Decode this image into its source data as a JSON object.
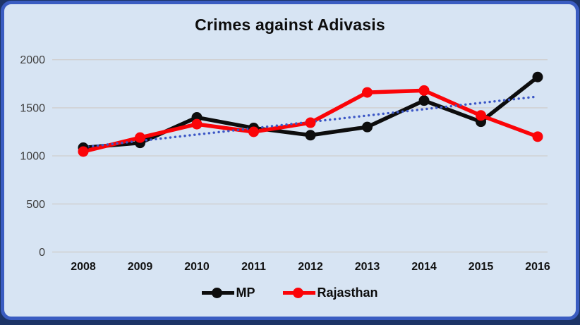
{
  "chart_data": {
    "type": "line",
    "title": "Crimes against Adivasis",
    "x": [
      "2008",
      "2009",
      "2010",
      "2011",
      "2012",
      "2013",
      "2014",
      "2015",
      "2016"
    ],
    "series": [
      {
        "name": "MP",
        "color": "#0d0d0d",
        "values": [
          1085,
          1135,
          1400,
          1290,
          1215,
          1300,
          1575,
          1355,
          1820
        ]
      },
      {
        "name": "Rajasthan",
        "color": "#fb0408",
        "values": [
          1045,
          1190,
          1330,
          1250,
          1345,
          1660,
          1680,
          1420,
          1200
        ]
      }
    ],
    "trendline": {
      "for_series": "MP",
      "kind": "linear",
      "style": "dotted",
      "color": "#3c57c6",
      "endpoint_values": [
        1090,
        1617
      ]
    },
    "xlabel": "",
    "ylabel": "",
    "ylim": [
      0,
      2000
    ],
    "yticks": [
      0,
      500,
      1000,
      1500,
      2000
    ],
    "grid": true,
    "gridline_color": "#d0cfcf",
    "legend_position": "bottom"
  },
  "frame": {
    "outer_color": "#1c3366",
    "border_color": "#3a5cc1",
    "background_color": "#d7e4f3"
  }
}
